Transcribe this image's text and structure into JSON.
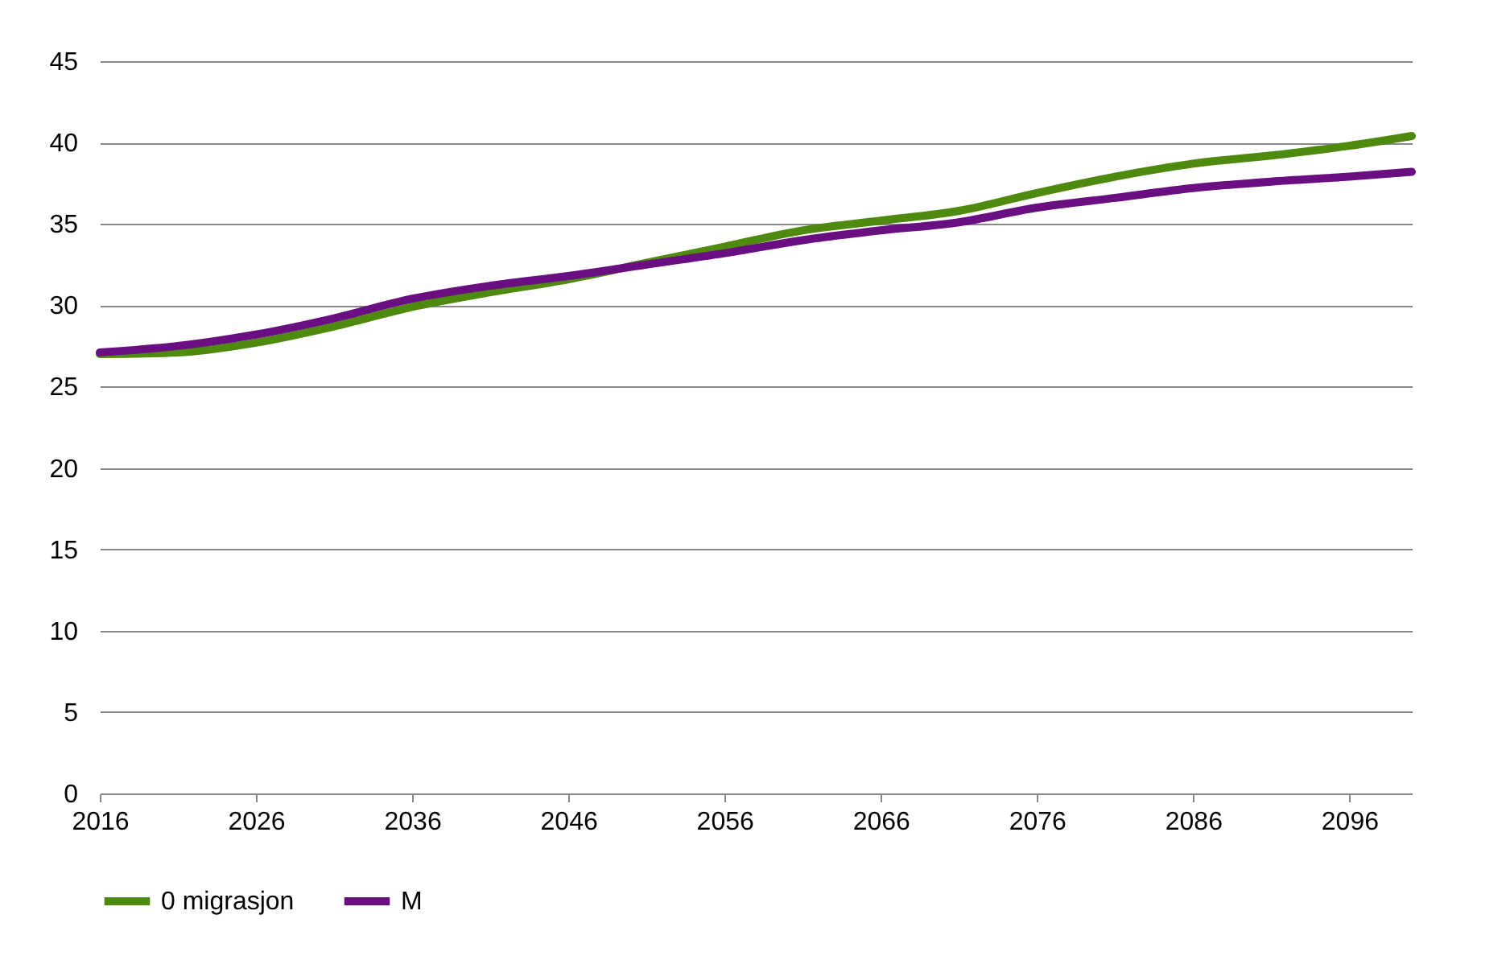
{
  "chart_data": {
    "type": "line",
    "x": [
      2016,
      2021,
      2026,
      2031,
      2036,
      2041,
      2046,
      2051,
      2056,
      2061,
      2066,
      2071,
      2076,
      2081,
      2086,
      2091,
      2096,
      2100
    ],
    "series": [
      {
        "name": "0 migrasjon",
        "color": "#4e8a0e",
        "values": [
          27.0,
          27.1,
          27.7,
          28.7,
          29.9,
          30.8,
          31.6,
          32.6,
          33.6,
          34.6,
          35.2,
          35.8,
          36.9,
          37.9,
          38.7,
          39.2,
          39.8,
          40.4
        ]
      },
      {
        "name": "M",
        "color": "#6a0f82",
        "values": [
          27.1,
          27.5,
          28.2,
          29.2,
          30.4,
          31.2,
          31.8,
          32.5,
          33.2,
          34.0,
          34.6,
          35.1,
          36.0,
          36.6,
          37.2,
          37.6,
          37.9,
          38.2
        ]
      }
    ],
    "xlim": [
      2016,
      2100
    ],
    "xticks": [
      2016,
      2026,
      2036,
      2046,
      2056,
      2066,
      2076,
      2086,
      2096
    ],
    "ylim": [
      0,
      45
    ],
    "yticks": [
      0,
      5,
      10,
      15,
      20,
      25,
      30,
      35,
      40,
      45
    ],
    "grid": "y",
    "legend": "bottom",
    "marker": "none",
    "line_style": "solid"
  }
}
